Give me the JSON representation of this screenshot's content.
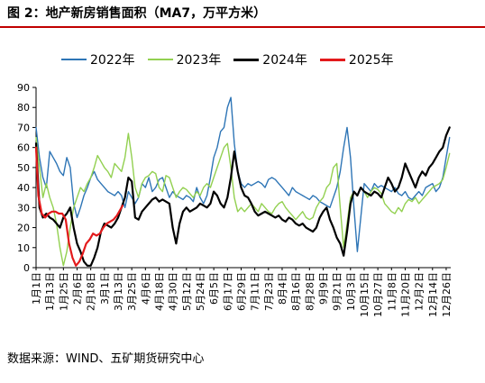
{
  "title": "图 2：地产新房销售面积（MA7，万平方米）",
  "source": "数据来源：WIND、五矿期货研究中心",
  "chart_data": {
    "type": "line",
    "ylim": [
      0,
      90
    ],
    "yticks": [
      0,
      10,
      20,
      30,
      40,
      50,
      60,
      70,
      80,
      90
    ],
    "grid": false,
    "legend_position": "top",
    "x_ticks": [
      "1月1日",
      "1月13日",
      "1月25日",
      "2月6日",
      "2月18日",
      "3月1日",
      "3月13日",
      "3月25日",
      "4月6日",
      "4月18日",
      "4月30日",
      "5月12日",
      "5月24日",
      "6月5日",
      "6月17日",
      "6月29日",
      "7月11日",
      "7月23日",
      "8月4日",
      "8月16日",
      "8月28日",
      "9月9日",
      "9月21日",
      "10月3日",
      "10月15日",
      "10月27日",
      "11月8日",
      "11月20日",
      "12月2日",
      "12月14日",
      "12月26日"
    ],
    "series": [
      {
        "name": "2022年",
        "color": "#2e75b6",
        "x": [
          1,
          4,
          7,
          10,
          13,
          16,
          19,
          22,
          25,
          28,
          31,
          34,
          37,
          40,
          43,
          46,
          49,
          52,
          55,
          58,
          61,
          64,
          67,
          70,
          73,
          76,
          79,
          82,
          85,
          88,
          91,
          94,
          97,
          100,
          103,
          106,
          109,
          112,
          115,
          118,
          121,
          124,
          127,
          130,
          133,
          136,
          139,
          142,
          145,
          148,
          151,
          154,
          157,
          160,
          163,
          166,
          169,
          172,
          175,
          178,
          181,
          184,
          187,
          190,
          193,
          196,
          199,
          202,
          205,
          208,
          211,
          214,
          217,
          220,
          223,
          226,
          229,
          232,
          235,
          238,
          241,
          244,
          247,
          250,
          253,
          256,
          259,
          262,
          265,
          268,
          271,
          274,
          277,
          280,
          283,
          286,
          289,
          292,
          295,
          298,
          301,
          304,
          307,
          310,
          313,
          316,
          319,
          322,
          325,
          328,
          331,
          334,
          337,
          340,
          343,
          346,
          349,
          352,
          355,
          358,
          361,
          364
        ],
        "values": [
          70,
          55,
          45,
          40,
          58,
          55,
          52,
          48,
          46,
          55,
          50,
          32,
          25,
          30,
          36,
          40,
          45,
          48,
          44,
          42,
          40,
          38,
          37,
          36,
          38,
          36,
          30,
          38,
          35,
          32,
          35,
          42,
          40,
          45,
          38,
          40,
          44,
          45,
          40,
          35,
          38,
          36,
          35,
          34,
          36,
          35,
          33,
          40,
          35,
          32,
          36,
          45,
          55,
          60,
          68,
          70,
          80,
          85,
          62,
          48,
          42,
          40,
          42,
          41,
          42,
          43,
          42,
          40,
          44,
          45,
          44,
          42,
          40,
          38,
          36,
          40,
          38,
          37,
          36,
          35,
          34,
          36,
          35,
          33,
          32,
          31,
          30,
          35,
          40,
          48,
          60,
          70,
          55,
          30,
          8,
          25,
          42,
          40,
          38,
          42,
          40,
          41,
          40,
          39,
          38,
          40,
          37,
          36,
          38,
          35,
          34,
          36,
          38,
          36,
          40,
          41,
          42,
          38,
          40,
          45,
          55,
          65
        ]
      },
      {
        "name": "2023年",
        "color": "#92d050",
        "x": [
          1,
          4,
          7,
          10,
          13,
          16,
          19,
          22,
          25,
          28,
          31,
          34,
          37,
          40,
          43,
          46,
          49,
          52,
          55,
          58,
          61,
          64,
          67,
          70,
          73,
          76,
          79,
          82,
          85,
          88,
          91,
          94,
          97,
          100,
          103,
          106,
          109,
          112,
          115,
          118,
          121,
          124,
          127,
          130,
          133,
          136,
          139,
          142,
          145,
          148,
          151,
          154,
          157,
          160,
          163,
          166,
          169,
          172,
          175,
          178,
          181,
          184,
          187,
          190,
          193,
          196,
          199,
          202,
          205,
          208,
          211,
          214,
          217,
          220,
          223,
          226,
          229,
          232,
          235,
          238,
          241,
          244,
          247,
          250,
          253,
          256,
          259,
          262,
          265,
          268,
          271,
          274,
          277,
          280,
          283,
          286,
          289,
          292,
          295,
          298,
          301,
          304,
          307,
          310,
          313,
          316,
          319,
          322,
          325,
          328,
          331,
          334,
          337,
          340,
          343,
          346,
          349,
          352,
          355,
          358,
          361,
          364
        ],
        "values": [
          65,
          50,
          35,
          42,
          35,
          30,
          22,
          10,
          1,
          8,
          20,
          30,
          35,
          40,
          38,
          42,
          45,
          50,
          56,
          53,
          50,
          48,
          45,
          52,
          50,
          48,
          55,
          67,
          55,
          40,
          35,
          42,
          45,
          46,
          48,
          47,
          40,
          38,
          46,
          45,
          40,
          35,
          38,
          40,
          39,
          37,
          35,
          38,
          36,
          40,
          42,
          40,
          45,
          50,
          55,
          60,
          62,
          50,
          35,
          28,
          30,
          28,
          30,
          32,
          30,
          28,
          32,
          30,
          28,
          27,
          30,
          32,
          33,
          30,
          28,
          26,
          24,
          26,
          28,
          25,
          24,
          25,
          30,
          33,
          35,
          40,
          42,
          50,
          52,
          30,
          10,
          22,
          35,
          38,
          36,
          40,
          38,
          35,
          38,
          40,
          39,
          37,
          32,
          30,
          28,
          27,
          30,
          28,
          32,
          34,
          33,
          35,
          32,
          34,
          36,
          38,
          40,
          41,
          42,
          44,
          50,
          57
        ]
      },
      {
        "name": "2024年",
        "color": "#000000",
        "x": [
          1,
          4,
          7,
          10,
          13,
          16,
          19,
          22,
          25,
          28,
          31,
          34,
          37,
          40,
          43,
          46,
          49,
          52,
          55,
          58,
          61,
          64,
          67,
          70,
          73,
          76,
          79,
          82,
          85,
          88,
          91,
          94,
          97,
          100,
          103,
          106,
          109,
          112,
          115,
          118,
          121,
          124,
          127,
          130,
          133,
          136,
          139,
          142,
          145,
          148,
          151,
          154,
          157,
          160,
          163,
          166,
          169,
          172,
          175,
          178,
          181,
          184,
          187,
          190,
          193,
          196,
          199,
          202,
          205,
          208,
          211,
          214,
          217,
          220,
          223,
          226,
          229,
          232,
          235,
          238,
          241,
          244,
          247,
          250,
          253,
          256,
          259,
          262,
          265,
          268,
          271,
          274,
          277,
          280,
          283,
          286,
          289,
          292,
          295,
          298,
          301,
          304,
          307,
          310,
          313,
          316,
          319,
          322,
          325,
          328,
          331,
          334,
          337,
          340,
          343,
          346,
          349,
          352,
          355,
          358,
          361,
          364
        ],
        "values": [
          62,
          30,
          25,
          27,
          25,
          24,
          22,
          20,
          25,
          27,
          30,
          20,
          12,
          8,
          3,
          1,
          1,
          5,
          10,
          18,
          22,
          21,
          20,
          22,
          25,
          30,
          35,
          45,
          43,
          25,
          24,
          28,
          30,
          32,
          34,
          35,
          33,
          34,
          33,
          32,
          20,
          12,
          22,
          28,
          30,
          28,
          29,
          30,
          32,
          31,
          30,
          32,
          38,
          36,
          32,
          30,
          35,
          45,
          58,
          48,
          40,
          36,
          35,
          32,
          28,
          26,
          27,
          28,
          27,
          26,
          25,
          26,
          24,
          23,
          25,
          24,
          22,
          21,
          22,
          20,
          19,
          18,
          20,
          25,
          28,
          30,
          24,
          20,
          15,
          12,
          6,
          18,
          32,
          38,
          36,
          40,
          38,
          37,
          36,
          38,
          37,
          35,
          40,
          45,
          42,
          38,
          40,
          45,
          52,
          48,
          44,
          40,
          45,
          48,
          46,
          50,
          52,
          55,
          58,
          60,
          66,
          70
        ]
      },
      {
        "name": "2025年",
        "color": "#e31a1c",
        "x": [
          1,
          3,
          6,
          9,
          12,
          15,
          18,
          21,
          24,
          27,
          30,
          33,
          36,
          39,
          42,
          45,
          48,
          51,
          54,
          57,
          60,
          63,
          66,
          69,
          72,
          75,
          77
        ],
        "values": [
          60,
          36,
          27,
          25,
          27,
          28,
          28,
          27,
          27,
          24,
          12,
          5,
          1,
          3,
          7,
          12,
          14,
          17,
          16,
          17,
          20,
          22,
          23,
          24,
          26,
          29,
          31
        ]
      }
    ]
  }
}
